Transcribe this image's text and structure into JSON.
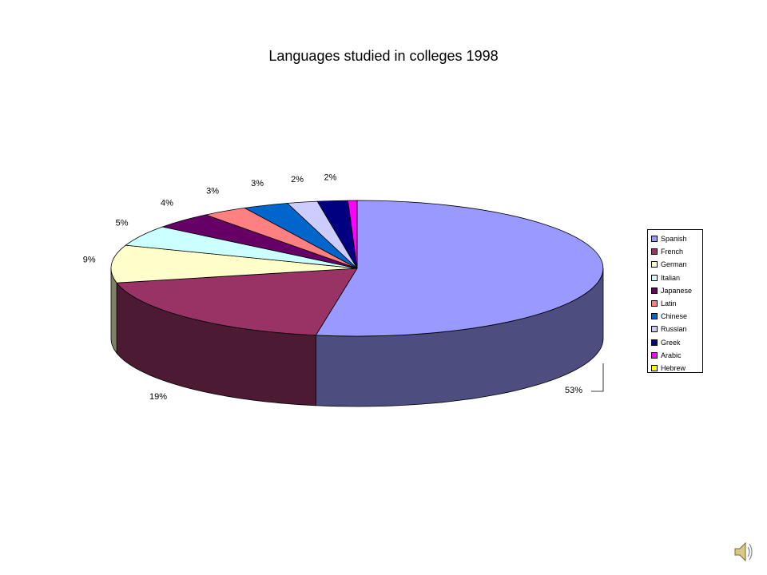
{
  "chart_data": {
    "type": "pie",
    "title": "Languages studied in colleges 1998",
    "slices": [
      {
        "name": "Spanish",
        "value": 53,
        "label": "53%",
        "color": "#9999ff"
      },
      {
        "name": "French",
        "value": 19,
        "label": "19%",
        "color": "#993366"
      },
      {
        "name": "German",
        "value": 9,
        "label": "9%",
        "color": "#ffffcc"
      },
      {
        "name": "Italian",
        "value": 5,
        "label": "5%",
        "color": "#ccffff"
      },
      {
        "name": "Japanese",
        "value": 4,
        "label": "4%",
        "color": "#660066"
      },
      {
        "name": "Latin",
        "value": 3,
        "label": "3%",
        "color": "#ff8080"
      },
      {
        "name": "Chinese",
        "value": 3,
        "label": "3%",
        "color": "#0066cc"
      },
      {
        "name": "Russian",
        "value": 2,
        "label": "2%",
        "color": "#ccccff"
      },
      {
        "name": "Greek",
        "value": 2,
        "label": "2%",
        "color": "#000080"
      },
      {
        "name": "Arabic",
        "value": 0.6,
        "label": "",
        "color": "#ff00ff"
      },
      {
        "name": "Hebrew",
        "value": 0,
        "label": "",
        "color": "#ffff00"
      }
    ],
    "legend_position": "right",
    "style": "3d-pie"
  },
  "icons": {
    "speaker": "speaker-icon"
  }
}
